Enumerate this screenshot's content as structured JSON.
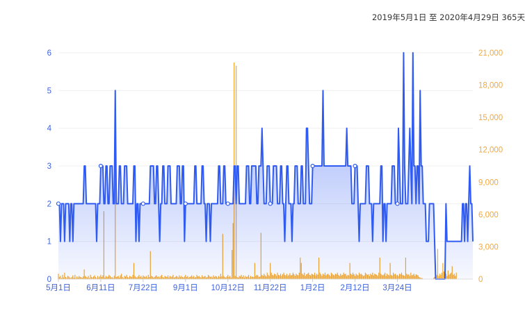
{
  "header": {
    "date_range": "2019年5月1日 至 2020年4月29日 365天"
  },
  "colors": {
    "primary": "#2f5bf2",
    "secondary": "#f5a623",
    "grid": "#f0f0f0"
  },
  "chart_data": {
    "type": "line",
    "title": "",
    "x_start": "2019-05-01",
    "x_end": "2020-04-29",
    "x_tick_labels": [
      "5月1日",
      "6月11日",
      "7月22日",
      "9月1日",
      "10月12日",
      "11月22日",
      "1月2日",
      "2月12日",
      "3月24日"
    ],
    "y_left": {
      "ticks": [
        "0",
        "1",
        "2",
        "3",
        "4",
        "5",
        "6"
      ],
      "range": [
        0,
        6
      ]
    },
    "y_right": {
      "ticks": [
        "0",
        "3,000",
        "6,000",
        "9,000",
        "12,000",
        "15,000",
        "18,000",
        "21,000"
      ],
      "range": [
        0,
        21000
      ]
    },
    "series": [
      {
        "axis": "left",
        "style": "area-line",
        "color": "#2f5bf2",
        "values": [
          2,
          2,
          1,
          2,
          2,
          2,
          1,
          2,
          2,
          2,
          2,
          1,
          2,
          2,
          1,
          2,
          2,
          2,
          2,
          2,
          2,
          2,
          2,
          2,
          2,
          3,
          3,
          2,
          2,
          2,
          2,
          2,
          2,
          2,
          2,
          2,
          2,
          1,
          2,
          2,
          2,
          3,
          3,
          3,
          2,
          2,
          3,
          3,
          2,
          2,
          3,
          3,
          3,
          2,
          2,
          5,
          2,
          2,
          2,
          3,
          3,
          2,
          2,
          2,
          3,
          3,
          3,
          2,
          2,
          2,
          2,
          2,
          2,
          3,
          3,
          1,
          2,
          2,
          1,
          2,
          2,
          2,
          2,
          2,
          2,
          2,
          2,
          2,
          2,
          3,
          3,
          3,
          3,
          2,
          2,
          3,
          3,
          2,
          1,
          2,
          2,
          3,
          3,
          2,
          2,
          2,
          3,
          3,
          3,
          2,
          2,
          2,
          2,
          2,
          2,
          3,
          3,
          3,
          2,
          2,
          3,
          3,
          1,
          2,
          2,
          2,
          2,
          2,
          2,
          2,
          2,
          2,
          3,
          3,
          2,
          2,
          2,
          2,
          2,
          3,
          3,
          2,
          2,
          1,
          2,
          2,
          2,
          1,
          2,
          2,
          2,
          2,
          2,
          2,
          2,
          3,
          3,
          2,
          2,
          2,
          3,
          3,
          2,
          2,
          2,
          2,
          2,
          2,
          2,
          2,
          3,
          3,
          2,
          3,
          3,
          2,
          2,
          2,
          2,
          2,
          2,
          2,
          3,
          3,
          3,
          2,
          2,
          3,
          3,
          3,
          3,
          3,
          2,
          2,
          3,
          3,
          3,
          4,
          3,
          2,
          2,
          2,
          3,
          3,
          3,
          2,
          2,
          2,
          3,
          3,
          3,
          3,
          2,
          2,
          2,
          3,
          3,
          2,
          2,
          1,
          2,
          3,
          3,
          2,
          2,
          2,
          1,
          2,
          2,
          3,
          3,
          3,
          2,
          2,
          2,
          3,
          3,
          2,
          2,
          2,
          4,
          4,
          3,
          2,
          2,
          2,
          3,
          3,
          3,
          3,
          3,
          3,
          3,
          3,
          3,
          3,
          5,
          3,
          3,
          3,
          3,
          3,
          3,
          3,
          3,
          3,
          3,
          3,
          3,
          3,
          3,
          3,
          3,
          3,
          3,
          3,
          3,
          3,
          3,
          4,
          3,
          3,
          3,
          3,
          2,
          2,
          2,
          3,
          3,
          3,
          2,
          1,
          2,
          2,
          2,
          2,
          2,
          2,
          3,
          3,
          3,
          2,
          2,
          2,
          1,
          2,
          2,
          2,
          2,
          2,
          2,
          2,
          3,
          3,
          1,
          2,
          2,
          1,
          2,
          2,
          2,
          2,
          2,
          3,
          3,
          3,
          2,
          2,
          2,
          4,
          3,
          2,
          2,
          2,
          6,
          3,
          2,
          2,
          2,
          3,
          4,
          3,
          2,
          6,
          3,
          3,
          2,
          3,
          3,
          2,
          5,
          3,
          3,
          2,
          2,
          2,
          1,
          1,
          1,
          2,
          2,
          2,
          2,
          2,
          1,
          0,
          0,
          0,
          0,
          0,
          0,
          0,
          0,
          0,
          0,
          2,
          1,
          1,
          1,
          1,
          1,
          1,
          1,
          1,
          1,
          1,
          1,
          1,
          1,
          1,
          1,
          2,
          2,
          1,
          2,
          2,
          1,
          2,
          3,
          2,
          2,
          1
        ]
      },
      {
        "axis": "right",
        "style": "bars",
        "color": "#f5a623",
        "values": [
          500,
          200,
          300,
          100,
          400,
          150,
          600,
          200,
          100,
          300,
          250,
          150,
          100,
          200,
          350,
          120,
          400,
          100,
          250,
          150,
          300,
          200,
          180,
          120,
          250,
          900,
          300,
          200,
          150,
          300,
          100,
          400,
          200,
          150,
          250,
          350,
          200,
          100,
          300,
          150,
          250,
          400,
          200,
          350,
          6300,
          150,
          300,
          200,
          250,
          400,
          300,
          150,
          200,
          100,
          300,
          10700,
          200,
          250,
          300,
          150,
          350,
          500,
          200,
          100,
          300,
          250,
          400,
          200,
          150,
          300,
          250,
          200,
          400,
          1500,
          300,
          200,
          150,
          250,
          400,
          200,
          300,
          150,
          350,
          250,
          200,
          300,
          150,
          400,
          200,
          2600,
          300,
          250,
          150,
          200,
          300,
          350,
          200,
          250,
          150,
          300,
          400,
          200,
          150,
          300,
          250,
          200,
          350,
          150,
          300,
          200,
          250,
          400,
          150,
          200,
          300,
          250,
          150,
          350,
          200,
          300,
          200,
          150,
          250,
          400,
          200,
          300,
          150,
          200,
          250,
          350,
          200,
          300,
          150,
          200,
          400,
          250,
          300,
          200,
          150,
          350,
          200,
          250,
          300,
          150,
          200,
          400,
          300,
          200,
          250,
          150,
          350,
          200,
          300,
          250,
          150,
          300,
          200,
          500,
          250,
          4200,
          300,
          200,
          150,
          250,
          400,
          200,
          300,
          150,
          2700,
          5200,
          20100,
          300,
          19800,
          200,
          150,
          300,
          250,
          400,
          200,
          350,
          150,
          300,
          200,
          250,
          400,
          150,
          300,
          200,
          250,
          200,
          1500,
          300,
          400,
          350,
          200,
          250,
          4300,
          400,
          300,
          500,
          350,
          250,
          600,
          400,
          300,
          1500,
          600,
          400,
          350,
          500,
          450,
          300,
          600,
          400,
          350,
          500,
          300,
          450,
          600,
          400,
          350,
          500,
          300,
          400,
          550,
          350,
          400,
          600,
          450,
          300,
          500,
          400,
          350,
          600,
          2000,
          1500,
          500,
          400,
          600,
          300,
          450,
          500,
          600,
          400,
          350,
          500,
          450,
          400,
          600,
          350,
          500,
          400,
          2000,
          600,
          450,
          300,
          500,
          400,
          600,
          350,
          450,
          500,
          400,
          300,
          600,
          500,
          400,
          350,
          500,
          450,
          600,
          400,
          300,
          500,
          350,
          400,
          600,
          450,
          500,
          300,
          400,
          350,
          1500,
          500,
          400,
          600,
          450,
          300,
          500,
          400,
          350,
          600,
          450,
          500,
          400,
          300,
          350,
          600,
          500,
          400,
          450,
          300,
          500,
          400,
          600,
          350,
          500,
          450,
          400,
          300,
          600,
          2000,
          500,
          400,
          350,
          450,
          600,
          300,
          500,
          400,
          350,
          1500,
          400,
          300,
          600,
          450,
          500,
          350,
          400,
          300,
          500,
          450,
          600,
          400,
          350,
          300,
          2000,
          500,
          400,
          450,
          300,
          600,
          350,
          400,
          500,
          300,
          450,
          400,
          350,
          200,
          150,
          100,
          100,
          0,
          0,
          0,
          0,
          0,
          0,
          0,
          0,
          0,
          0,
          100,
          200,
          300,
          400,
          2800,
          300,
          500,
          400,
          600,
          1500,
          700,
          400,
          500,
          300,
          800,
          400,
          500,
          600,
          1200,
          400,
          500,
          300,
          600
        ]
      }
    ]
  }
}
